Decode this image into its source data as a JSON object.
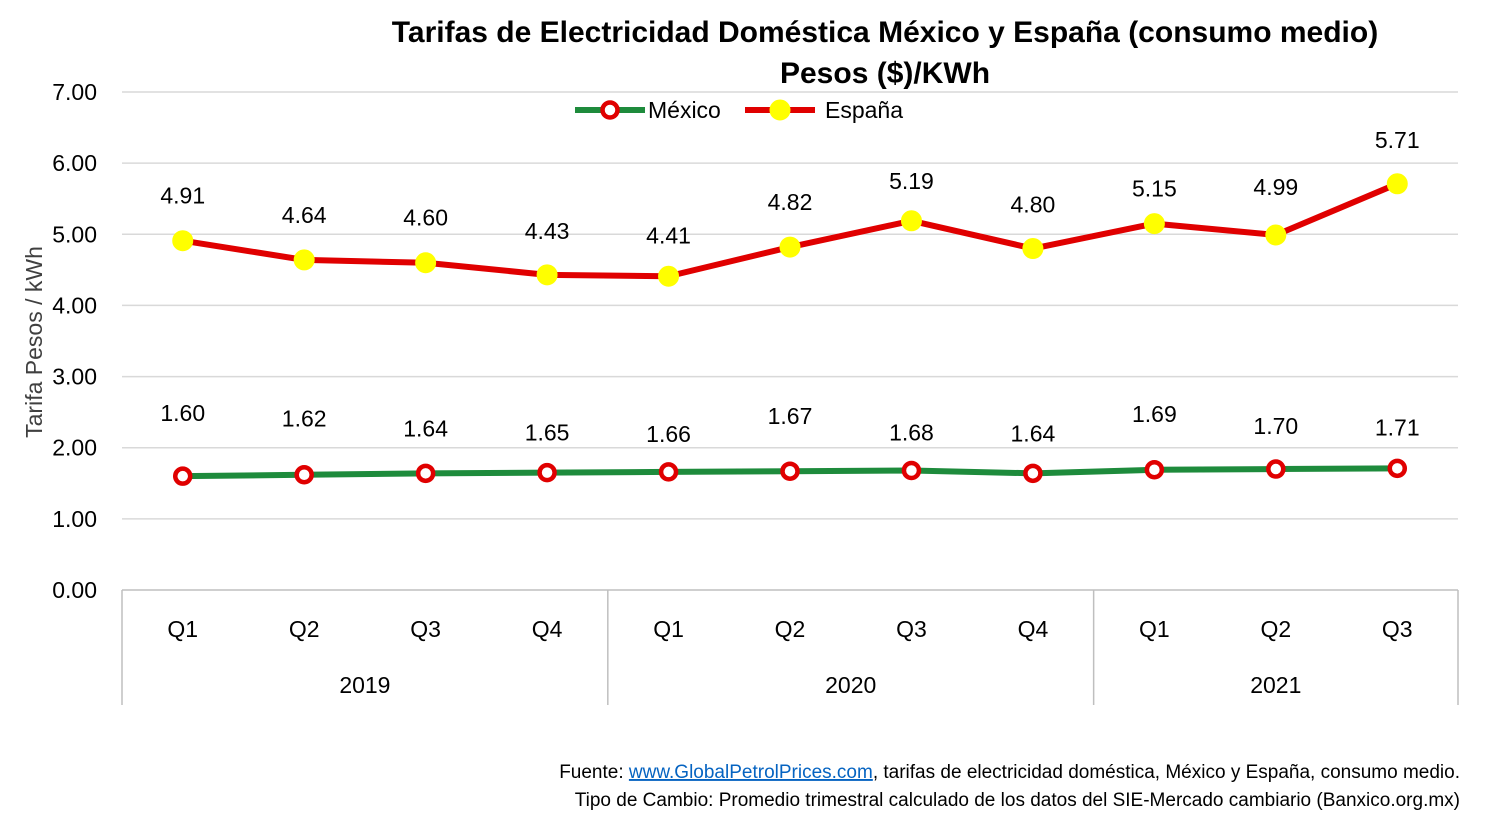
{
  "chart_data": {
    "type": "line",
    "title": "Tarifas de Electricidad Doméstica México y España (consumo medio)",
    "subtitle": "Pesos ($)/KWh",
    "ylabel": "Tarifa Pesos / kWh",
    "ylim": [
      0,
      7
    ],
    "yticks": [
      "0.00",
      "1.00",
      "2.00",
      "3.00",
      "4.00",
      "5.00",
      "6.00",
      "7.00"
    ],
    "grid": true,
    "legend_position": "top-center",
    "categories": [
      "Q1",
      "Q2",
      "Q3",
      "Q4",
      "Q1",
      "Q2",
      "Q3",
      "Q4",
      "Q1",
      "Q2",
      "Q3"
    ],
    "groups": [
      {
        "label": "2019",
        "count": 4
      },
      {
        "label": "2020",
        "count": 4
      },
      {
        "label": "2021",
        "count": 3
      }
    ],
    "series": [
      {
        "name": "México",
        "line_color": "#1e8b3c",
        "marker_fill": "#ffffff",
        "marker_stroke": "#e00000",
        "values": [
          1.6,
          1.62,
          1.64,
          1.65,
          1.66,
          1.67,
          1.68,
          1.64,
          1.69,
          1.7,
          1.71
        ],
        "labels": [
          "1.60",
          "1.62",
          "1.64",
          "1.65",
          "1.66",
          "1.67",
          "1.68",
          "1.64",
          "1.69",
          "1.70",
          "1.71"
        ]
      },
      {
        "name": "España",
        "line_color": "#e00000",
        "marker_fill": "#ffff00",
        "marker_stroke": "#ffff00",
        "values": [
          4.91,
          4.64,
          4.6,
          4.43,
          4.41,
          4.82,
          5.19,
          4.8,
          5.15,
          4.99,
          5.71
        ],
        "labels": [
          "4.91",
          "4.64",
          "4.60",
          "4.43",
          "4.41",
          "4.82",
          "5.19",
          "4.80",
          "5.15",
          "4.99",
          "5.71"
        ]
      }
    ]
  },
  "footer": {
    "source_prefix": "Fuente: ",
    "source_link": "www.GlobalPetrolPrices.com",
    "source_suffix": ", tarifas de electricidad doméstica, México y España, consumo medio.",
    "exchange_note": "Tipo de Cambio: Promedio trimestral calculado de los datos del SIE-Mercado cambiario (Banxico.org.mx)"
  }
}
